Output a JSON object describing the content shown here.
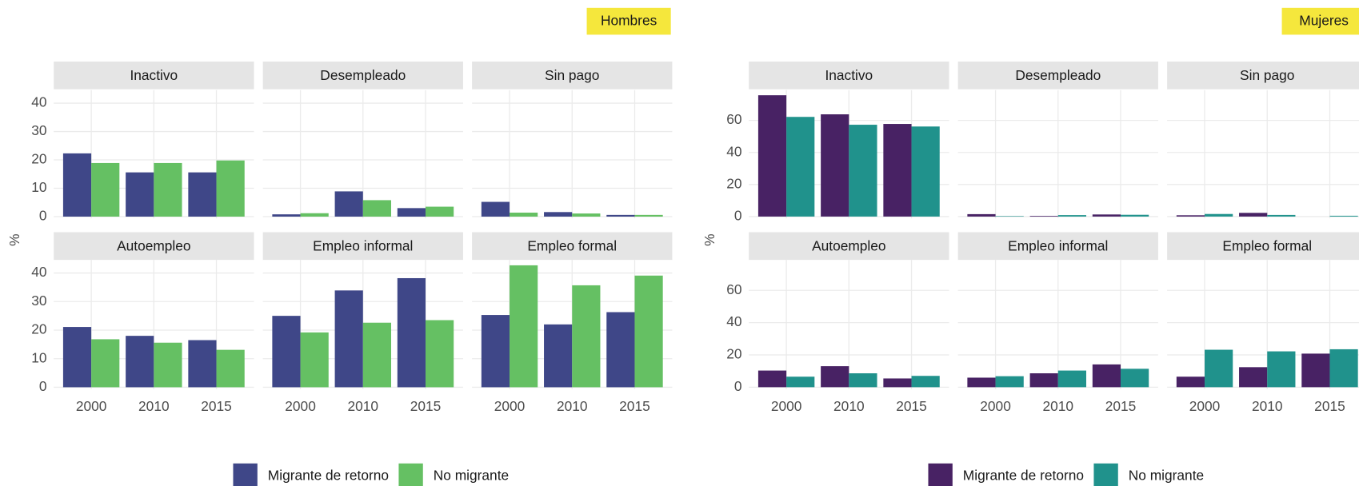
{
  "chart_data": [
    {
      "type": "bar",
      "tag": "Hombres",
      "ylabel": "%",
      "categories": [
        "2000",
        "2010",
        "2015"
      ],
      "legend": [
        {
          "name": "Migrante de retorno",
          "color": "#3f4788"
        },
        {
          "name": "No migrante",
          "color": "#65c063"
        }
      ],
      "ylim": [
        -0.6,
        44.6
      ],
      "yticks": [
        0,
        10,
        20,
        30,
        40
      ],
      "grid": true,
      "facets": [
        {
          "title": "Inactivo",
          "series": [
            {
              "values": [
                22.3,
                15.6,
                15.6
              ]
            },
            {
              "values": [
                18.9,
                18.9,
                19.8
              ]
            }
          ]
        },
        {
          "title": "Desempleado",
          "series": [
            {
              "values": [
                0.8,
                8.9,
                3.0
              ]
            },
            {
              "values": [
                1.2,
                5.8,
                3.5
              ]
            }
          ]
        },
        {
          "title": "Sin pago",
          "series": [
            {
              "values": [
                5.2,
                1.6,
                0.6
              ]
            },
            {
              "values": [
                1.4,
                1.1,
                0.6
              ]
            }
          ]
        },
        {
          "title": "Autoempleo",
          "series": [
            {
              "values": [
                21.1,
                18.0,
                16.5
              ]
            },
            {
              "values": [
                16.8,
                15.6,
                13.1
              ]
            }
          ]
        },
        {
          "title": "Empleo informal",
          "series": [
            {
              "values": [
                25.0,
                33.9,
                38.2
              ]
            },
            {
              "values": [
                19.2,
                22.6,
                23.5
              ]
            }
          ]
        },
        {
          "title": "Empleo formal",
          "series": [
            {
              "values": [
                25.3,
                22.0,
                26.3
              ]
            },
            {
              "values": [
                42.7,
                35.7,
                39.1
              ]
            }
          ]
        }
      ]
    },
    {
      "type": "bar",
      "tag": "Mujeres",
      "ylabel": "%",
      "categories": [
        "2000",
        "2010",
        "2015"
      ],
      "legend": [
        {
          "name": "Migrante de retorno",
          "color": "#482264"
        },
        {
          "name": "No migrante",
          "color": "#20928c"
        }
      ],
      "ylim": [
        -1.1,
        78.9
      ],
      "yticks": [
        0,
        20,
        40,
        60
      ],
      "grid": true,
      "facets": [
        {
          "title": "Inactivo",
          "series": [
            {
              "values": [
                75.7,
                63.8,
                57.8
              ]
            },
            {
              "values": [
                62.2,
                57.3,
                56.2
              ]
            }
          ]
        },
        {
          "title": "Desempleado",
          "series": [
            {
              "values": [
                1.5,
                0.4,
                1.3
              ]
            },
            {
              "values": [
                0.3,
                0.9,
                1.1
              ]
            }
          ]
        },
        {
          "title": "Sin pago",
          "series": [
            {
              "values": [
                0.8,
                2.3,
                0
              ]
            },
            {
              "values": [
                1.6,
                1.0,
                0.5
              ]
            }
          ]
        },
        {
          "title": "Autoempleo",
          "series": [
            {
              "values": [
                10.3,
                13.0,
                5.4
              ]
            },
            {
              "values": [
                6.5,
                8.6,
                7.0
              ]
            }
          ]
        },
        {
          "title": "Empleo informal",
          "series": [
            {
              "values": [
                5.9,
                8.6,
                14.1
              ]
            },
            {
              "values": [
                6.8,
                10.3,
                11.4
              ]
            }
          ]
        },
        {
          "title": "Empleo formal",
          "series": [
            {
              "values": [
                6.5,
                12.4,
                20.8
              ]
            },
            {
              "values": [
                23.2,
                22.2,
                23.5
              ]
            }
          ]
        }
      ]
    }
  ]
}
